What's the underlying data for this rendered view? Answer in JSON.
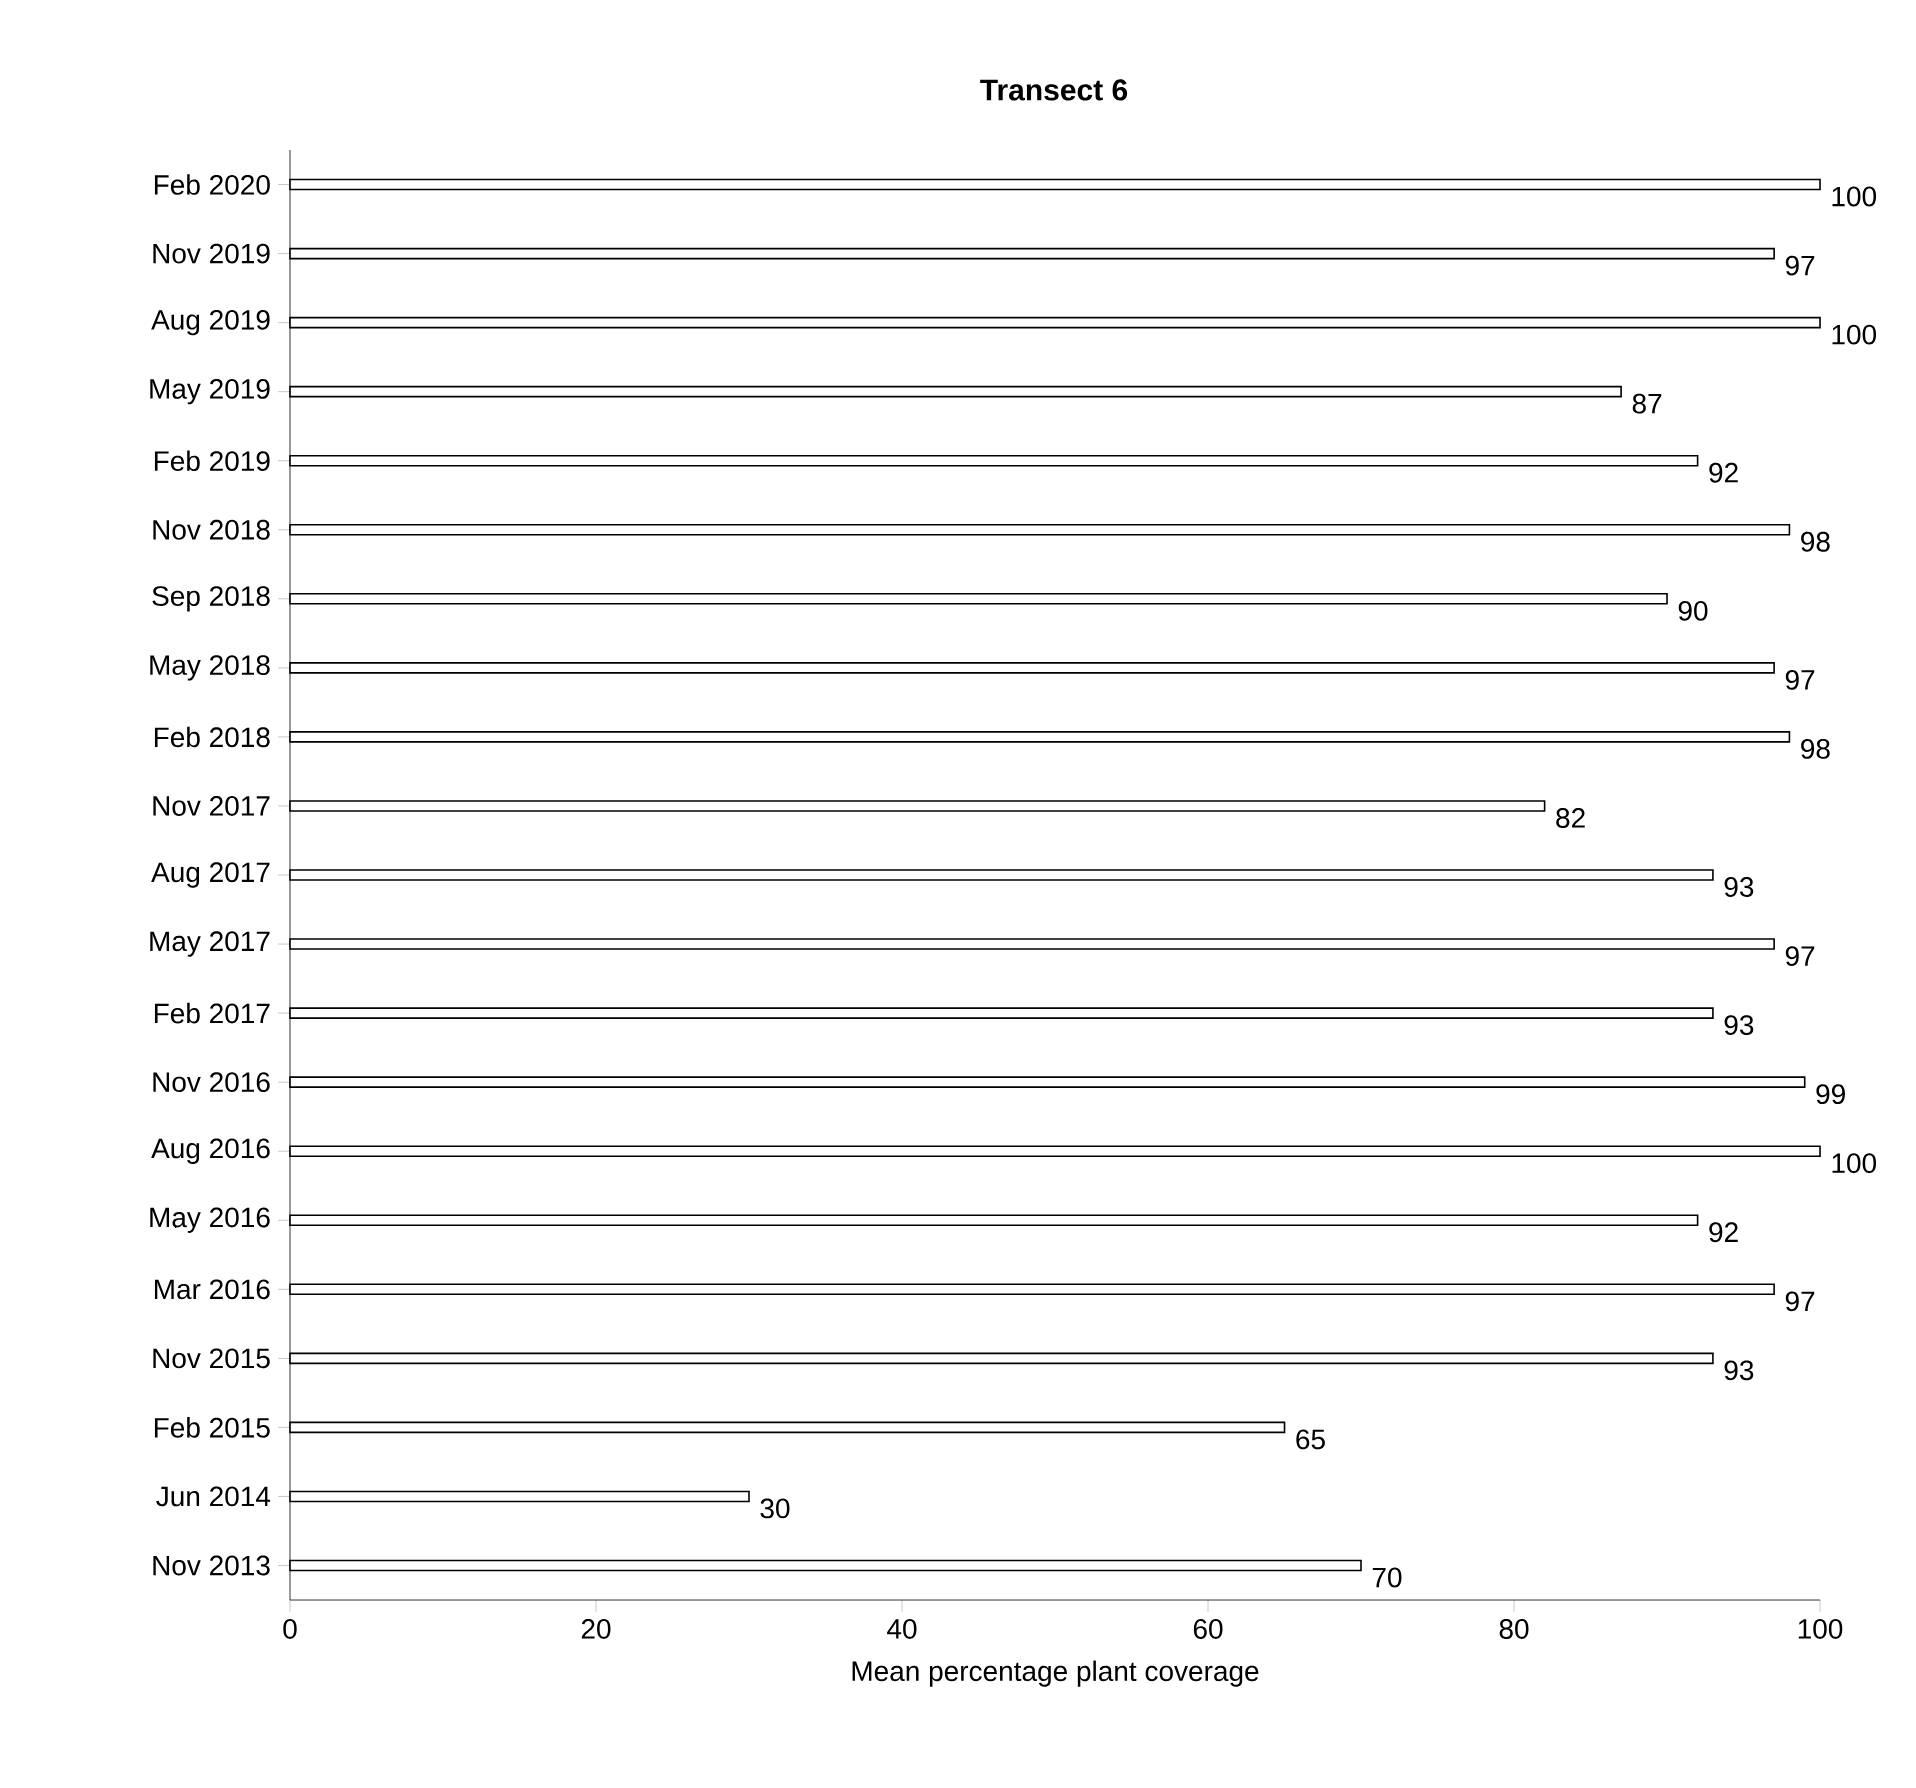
{
  "chart_data": {
    "type": "bar",
    "orientation": "horizontal",
    "title": "Transect 6",
    "xlabel": "Mean percentage plant coverage",
    "categories": [
      "Feb 2020",
      "Nov 2019",
      "Aug 2019",
      "May 2019",
      "Feb 2019",
      "Nov 2018",
      "Sep 2018",
      "May 2018",
      "Feb 2018",
      "Nov 2017",
      "Aug 2017",
      "May 2017",
      "Feb 2017",
      "Nov 2016",
      "Aug 2016",
      "May 2016",
      "Mar 2016",
      "Nov 2015",
      "Feb 2015",
      "Jun 2014",
      "Nov 2013"
    ],
    "values": [
      100,
      97,
      100,
      87,
      92,
      98,
      90,
      97,
      98,
      82,
      93,
      97,
      93,
      99,
      100,
      92,
      97,
      93,
      65,
      30,
      70
    ],
    "color": "#ffffff",
    "data_labels": true,
    "xlim": [
      0,
      100
    ],
    "xticks": [
      0,
      20,
      40,
      60,
      80,
      100
    ]
  }
}
